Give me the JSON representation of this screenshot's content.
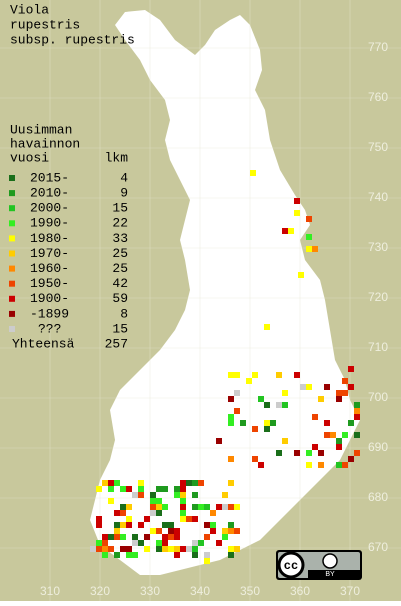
{
  "title": [
    "Viola",
    "rupestris",
    "subsp. rupestris"
  ],
  "legend": {
    "heading": [
      "Uusimman",
      "havainnon",
      "vuosi"
    ],
    "count_heading": "lkm",
    "entries": [
      {
        "label": "2015-",
        "count": 4,
        "color": "#1a6e1a"
      },
      {
        "label": "2010-",
        "count": 9,
        "color": "#1f9a1f"
      },
      {
        "label": "2000-",
        "count": 15,
        "color": "#22c422"
      },
      {
        "label": "1990-",
        "count": 22,
        "color": "#33ee22"
      },
      {
        "label": "1980-",
        "count": 33,
        "color": "#ffff00"
      },
      {
        "label": "1970-",
        "count": 25,
        "color": "#ffcc00"
      },
      {
        "label": "1960-",
        "count": 25,
        "color": "#ff8800"
      },
      {
        "label": "1950-",
        "count": 42,
        "color": "#ee4400"
      },
      {
        "label": "1900-",
        "count": 59,
        "color": "#cc0000"
      },
      {
        "label": "-1899",
        "count": 8,
        "color": "#990000"
      },
      {
        "label": "???",
        "count": 15,
        "color": "#cccccc"
      }
    ],
    "total_label": "Yhteensä",
    "total": 257
  },
  "north_grid": [
    770,
    760,
    750,
    740,
    730,
    720,
    710,
    700,
    690,
    680,
    670
  ],
  "east_grid": [
    310,
    320,
    330,
    340,
    350,
    360,
    370
  ],
  "license_badge": {
    "cc": "cc",
    "by": "BY"
  }
}
